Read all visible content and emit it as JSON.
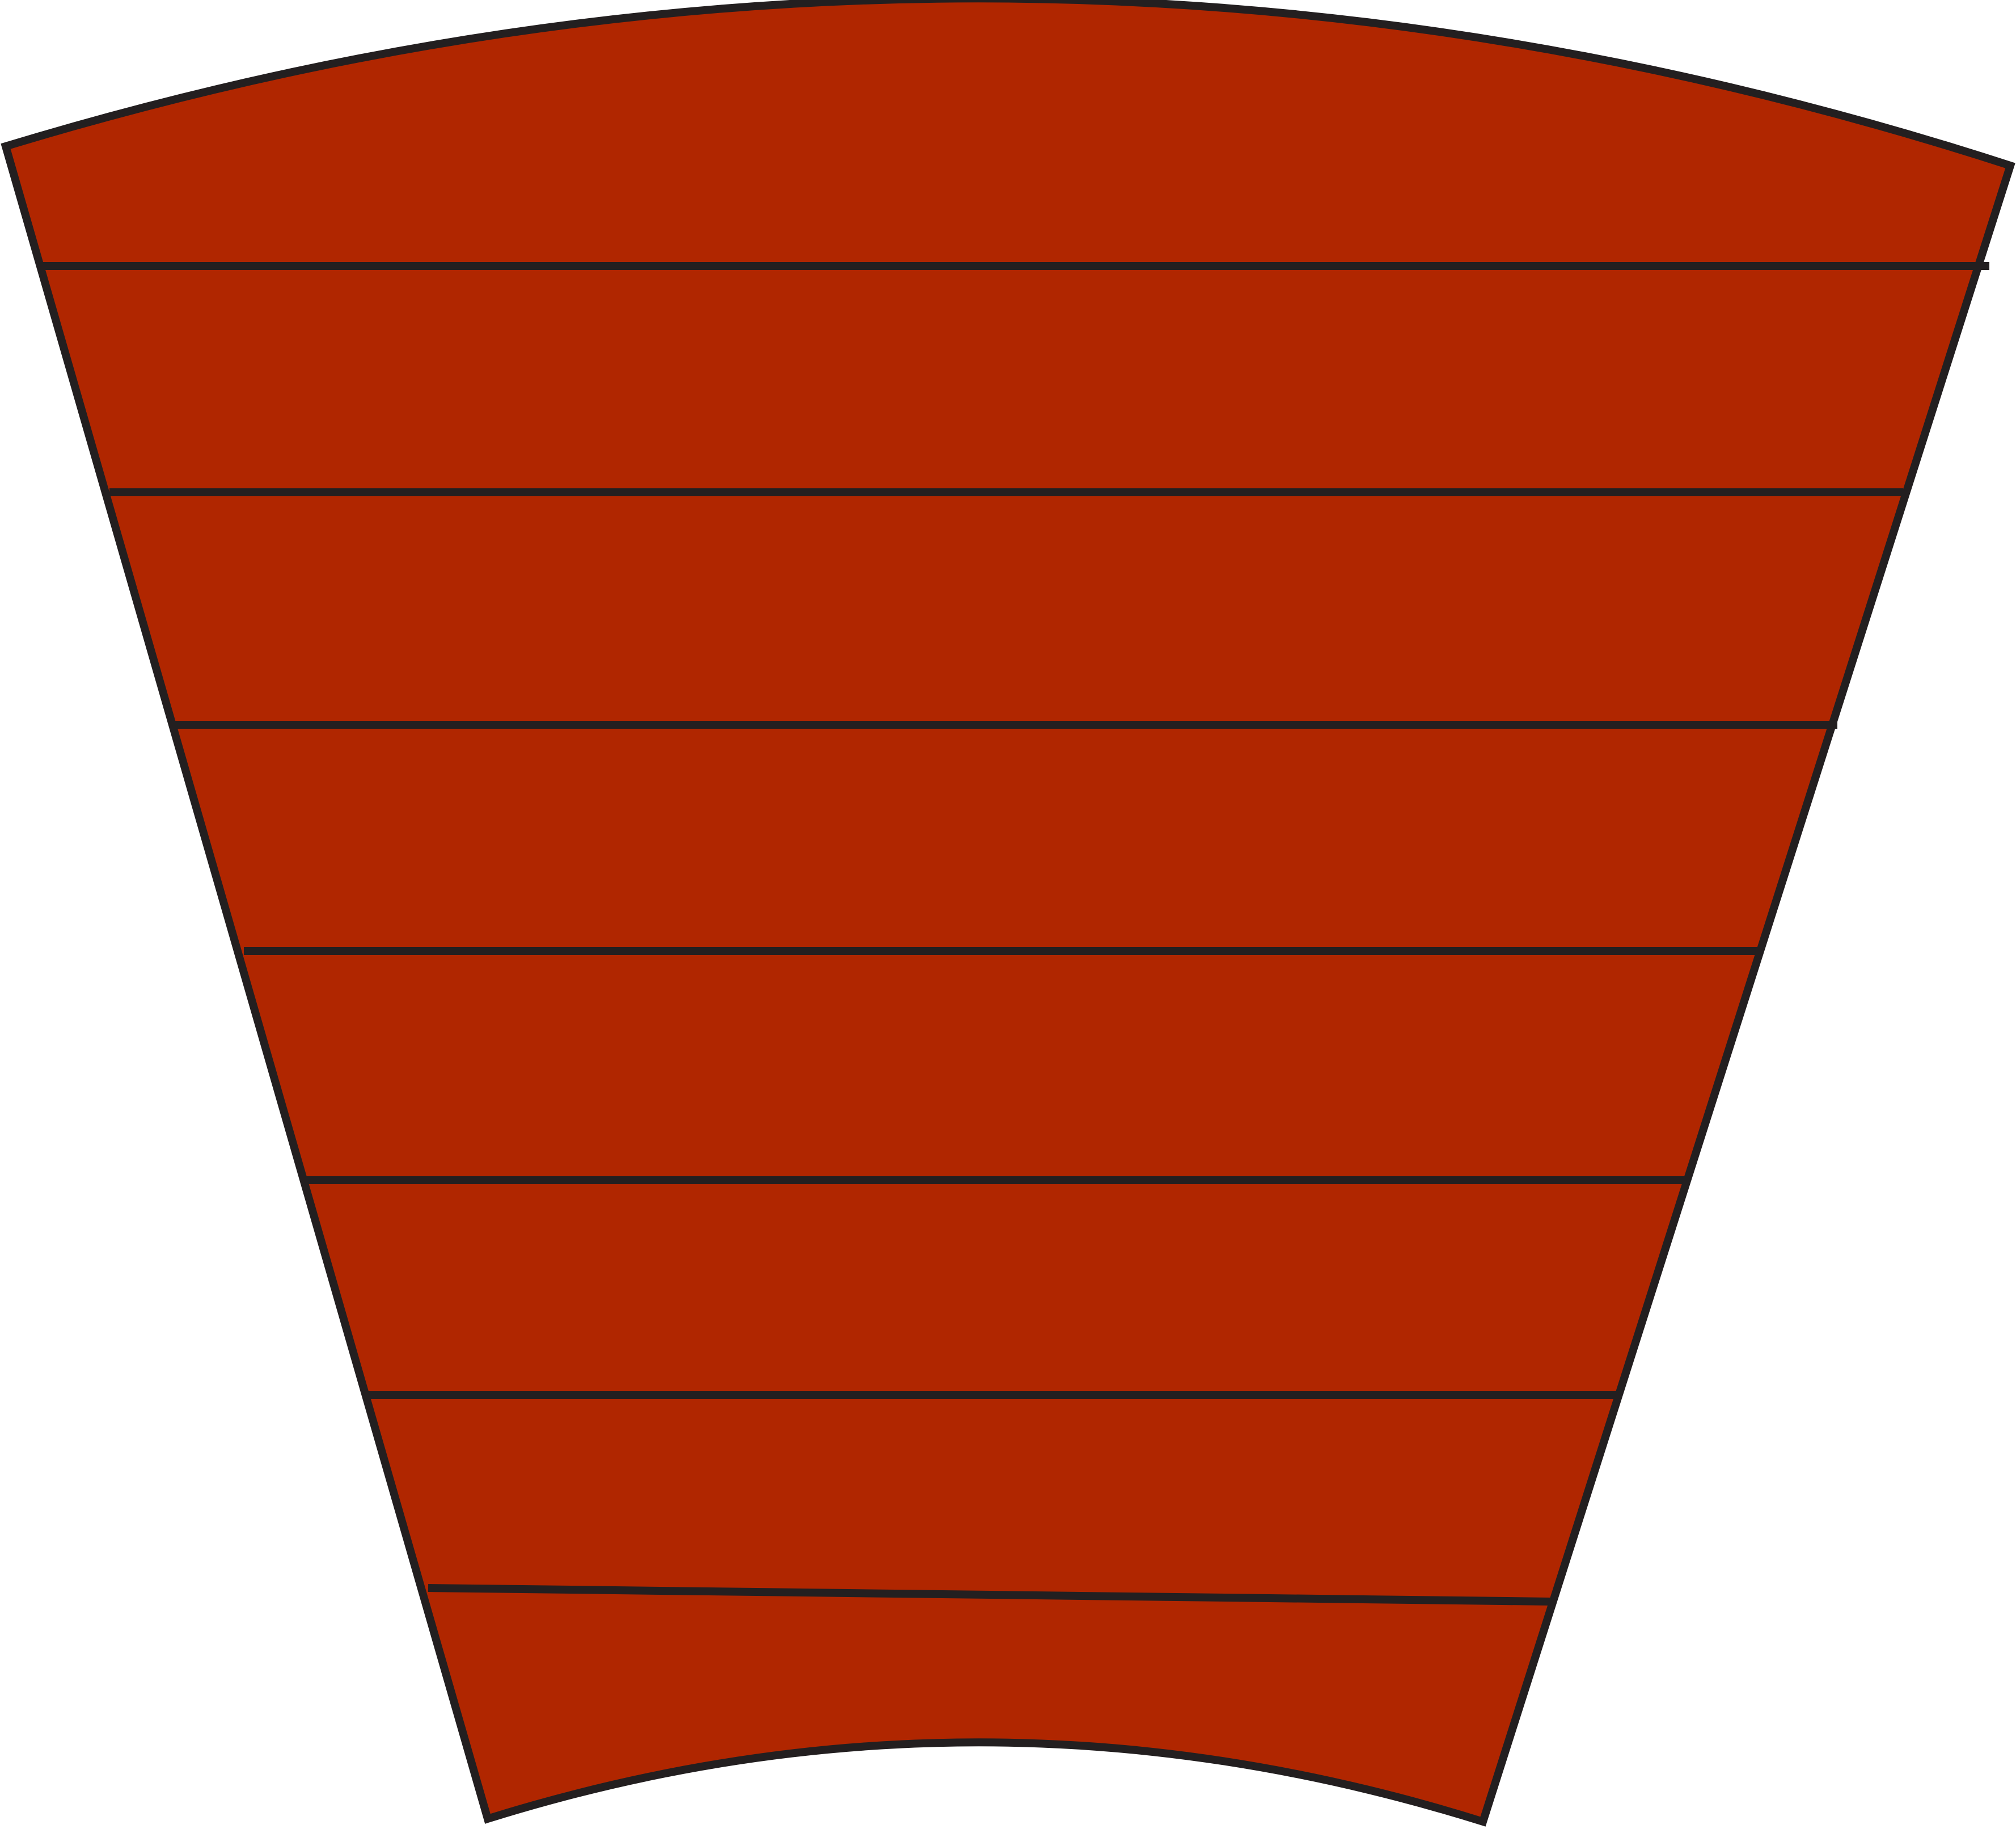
{
  "diagram": {
    "shape": "curved-trapezoid",
    "band_count": 8,
    "divider_count": 7,
    "colors": {
      "fill": "#b02600",
      "stroke": "#231f20",
      "background": "#ffffff"
    }
  }
}
